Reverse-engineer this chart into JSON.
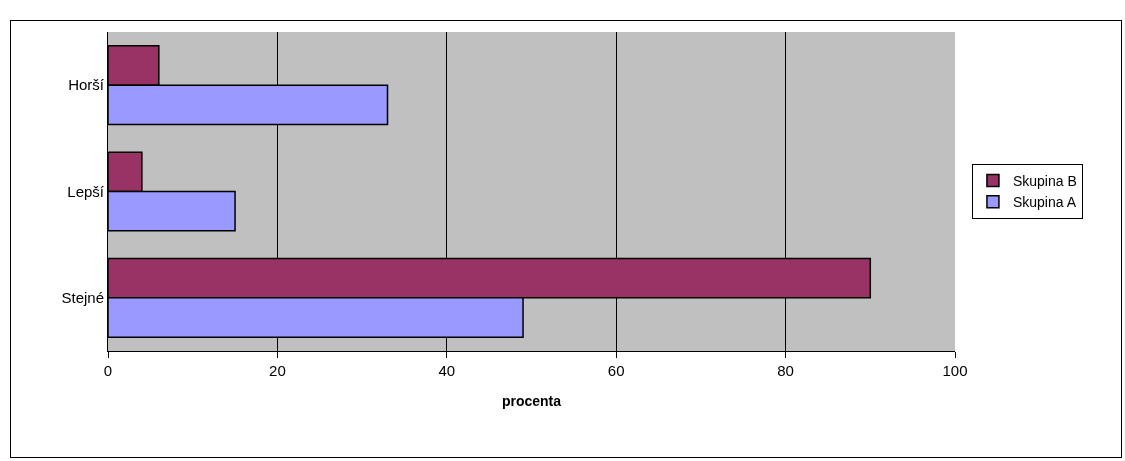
{
  "chart_data": {
    "type": "bar",
    "orientation": "horizontal",
    "xlabel": "procenta",
    "categories": [
      "Horší",
      "Lepší",
      "Stejné"
    ],
    "series": [
      {
        "name": "Skupina B",
        "color": "#993366",
        "values": [
          6,
          4,
          90
        ]
      },
      {
        "name": "Skupina A",
        "color": "#9999ff",
        "values": [
          33,
          15,
          49
        ]
      }
    ],
    "xlim": [
      0,
      100
    ],
    "xticks": [
      0,
      20,
      40,
      60,
      80,
      100
    ],
    "grid": "x",
    "legend": "right"
  }
}
